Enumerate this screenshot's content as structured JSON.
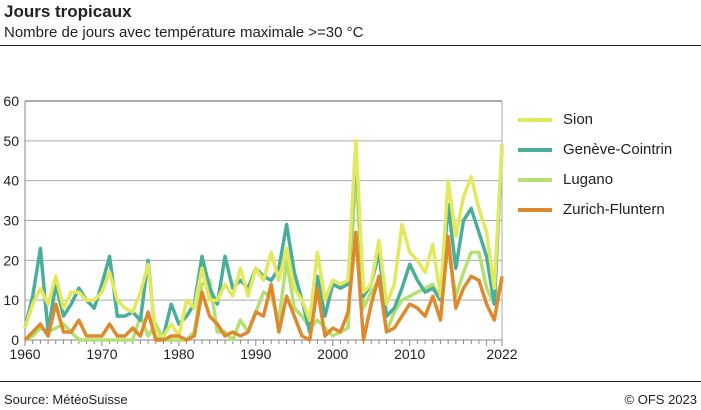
{
  "header": {
    "title": "Jours tropicaux",
    "subtitle": "Nombre de jours avec température maximale >=30 °C"
  },
  "footer": {
    "source": "Source: MétéoSuisse",
    "copyright": "© OFS 2023"
  },
  "chart_data": {
    "type": "line",
    "title": "Jours tropicaux",
    "subtitle": "Nombre de jours avec température maximale >=30 °C",
    "xlim": [
      1960,
      2022
    ],
    "ylim": [
      0,
      60
    ],
    "x_ticks": [
      "1960",
      "1970",
      "1980",
      "1990",
      "2000",
      "2010",
      "2022"
    ],
    "y_ticks": [
      "0",
      "10",
      "20",
      "30",
      "40",
      "50",
      "60"
    ],
    "grid": true,
    "legend": "right",
    "x": [
      1960,
      1961,
      1962,
      1963,
      1964,
      1965,
      1966,
      1967,
      1968,
      1969,
      1970,
      1971,
      1972,
      1973,
      1974,
      1975,
      1976,
      1977,
      1978,
      1979,
      1980,
      1981,
      1982,
      1983,
      1984,
      1985,
      1986,
      1987,
      1988,
      1989,
      1990,
      1991,
      1992,
      1993,
      1994,
      1995,
      1996,
      1997,
      1998,
      1999,
      2000,
      2001,
      2002,
      2003,
      2004,
      2005,
      2006,
      2007,
      2008,
      2009,
      2010,
      2011,
      2012,
      2013,
      2014,
      2015,
      2016,
      2017,
      2018,
      2019,
      2020,
      2021,
      2022
    ],
    "series": [
      {
        "name": "Sion",
        "color": "#e3e85c",
        "values": [
          3,
          9,
          13,
          9,
          16,
          8,
          12,
          12,
          10,
          10,
          12,
          17,
          10,
          8,
          7,
          12,
          19,
          1,
          1,
          4,
          1,
          10,
          8,
          18,
          10,
          10,
          14,
          11,
          18,
          11,
          18,
          15,
          22,
          15,
          23,
          13,
          10,
          5,
          22,
          10,
          15,
          14,
          15,
          50,
          12,
          14,
          25,
          9,
          14,
          29,
          22,
          20,
          17,
          24,
          11,
          40,
          26,
          36,
          41,
          33,
          27,
          13,
          49
        ]
      },
      {
        "name": "Genève-Cointrin",
        "color": "#4aae9b",
        "values": [
          3,
          11,
          23,
          2,
          14,
          6,
          9,
          13,
          10,
          8,
          14,
          21,
          6,
          6,
          7,
          5,
          20,
          0,
          1,
          9,
          4,
          6,
          9,
          21,
          13,
          9,
          21,
          13,
          15,
          13,
          18,
          16,
          15,
          18,
          29,
          17,
          10,
          2,
          16,
          6,
          14,
          13,
          14,
          48,
          11,
          14,
          22,
          6,
          8,
          13,
          19,
          15,
          12,
          13,
          10,
          34,
          18,
          30,
          33,
          27,
          21,
          9,
          49
        ]
      },
      {
        "name": "Lugano",
        "color": "#b5e072",
        "values": [
          0,
          1,
          3,
          2,
          3,
          4,
          2,
          0,
          0,
          0,
          0,
          0,
          0,
          0,
          0,
          6,
          1,
          4,
          0,
          0,
          0,
          0,
          2,
          14,
          15,
          2,
          2,
          0,
          5,
          2,
          7,
          12,
          11,
          5,
          20,
          8,
          6,
          3,
          5,
          3,
          1,
          2,
          3,
          44,
          8,
          12,
          15,
          2,
          7,
          10,
          11,
          12,
          13,
          14,
          10,
          23,
          11,
          17,
          22,
          22,
          13,
          9,
          15
        ]
      },
      {
        "name": "Zurich-Fluntern",
        "color": "#dd8a2e",
        "values": [
          0,
          2,
          4,
          1,
          9,
          2,
          2,
          5,
          1,
          1,
          1,
          4,
          1,
          1,
          3,
          1,
          7,
          0,
          0,
          1,
          1,
          0,
          1,
          12,
          6,
          4,
          1,
          2,
          1,
          2,
          7,
          6,
          14,
          2,
          11,
          6,
          1,
          0,
          13,
          1,
          3,
          2,
          7,
          27,
          0,
          9,
          16,
          2,
          3,
          6,
          9,
          8,
          6,
          11,
          5,
          26,
          8,
          13,
          16,
          15,
          9,
          5,
          16
        ]
      }
    ]
  }
}
